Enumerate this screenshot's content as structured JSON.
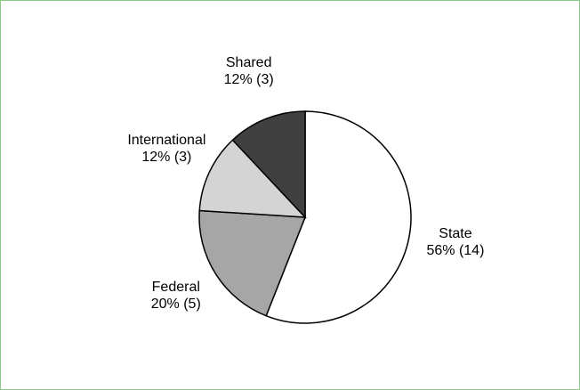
{
  "chart_data": {
    "type": "pie",
    "categories": [
      "State",
      "Federal",
      "International",
      "Shared"
    ],
    "values": [
      56,
      20,
      12,
      12
    ],
    "value_labels": [
      "56% (14)",
      "20% (5)",
      "12% (3)",
      "12% (3)"
    ],
    "colors": [
      "#ffffff",
      "#a6a6a6",
      "#d4d4d4",
      "#404040"
    ]
  }
}
